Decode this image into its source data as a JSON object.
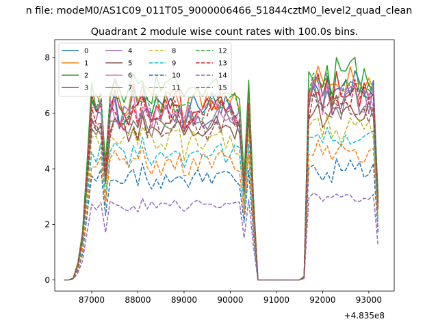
{
  "chart_data": {
    "type": "line",
    "suptitle": "n file: modeM0/AS1C09_011T05_9000006466_51844cztM0_level2_quad_clean",
    "title": "Quadrant 2 module wise count rates with 100.0s bins.",
    "xlabel": "",
    "ylabel": "",
    "x_offset_label": "+4.835e8",
    "xlim": [
      86200,
      93550
    ],
    "ylim": [
      -0.4,
      8.65
    ],
    "xticks": [
      87000,
      88000,
      89000,
      90000,
      91000,
      92000,
      93000
    ],
    "yticks": [
      0,
      2,
      4,
      6,
      8
    ],
    "grid": false,
    "legend_placement": "top-left",
    "legend_columns": 4,
    "profile_x": [
      86400,
      86500,
      86600,
      86700,
      86800,
      86900,
      87000,
      87100,
      87200,
      87300,
      87400,
      87500,
      87600,
      87700,
      87800,
      87900,
      88000,
      88100,
      88200,
      88300,
      88400,
      88500,
      88600,
      88700,
      88800,
      88900,
      89000,
      89100,
      89200,
      89300,
      89400,
      89500,
      89600,
      89700,
      89800,
      89900,
      90000,
      90100,
      90200,
      90300,
      90400,
      90500,
      90600,
      90700,
      90800,
      90900,
      91000,
      91100,
      91200,
      91300,
      91400,
      91500,
      91600,
      91700,
      91800,
      91900,
      92000,
      92100,
      92200,
      92300,
      92400,
      92500,
      92600,
      92700,
      92800,
      92900,
      93000,
      93100,
      93200
    ],
    "series": [
      {
        "name": "0",
        "color": "#1f77b4",
        "dash": "solid",
        "level": 6.35,
        "seed": 1
      },
      {
        "name": "1",
        "color": "#ff7f0e",
        "dash": "solid",
        "level": 6.55,
        "seed": 2
      },
      {
        "name": "2",
        "color": "#2ca02c",
        "dash": "solid",
        "level": 6.85,
        "seed": 3
      },
      {
        "name": "3",
        "color": "#d62728",
        "dash": "solid",
        "level": 6.3,
        "seed": 4
      },
      {
        "name": "4",
        "color": "#9467bd",
        "dash": "solid",
        "level": 6.05,
        "seed": 5
      },
      {
        "name": "5",
        "color": "#8c564b",
        "dash": "solid",
        "level": 5.6,
        "seed": 6
      },
      {
        "name": "6",
        "color": "#e377c2",
        "dash": "solid",
        "level": 6.15,
        "seed": 7
      },
      {
        "name": "7",
        "color": "#7f7f7f",
        "dash": "solid",
        "level": 5.85,
        "seed": 8
      },
      {
        "name": "8",
        "color": "#bcbd22",
        "dash": "dashed",
        "level": 5.05,
        "seed": 9
      },
      {
        "name": "9",
        "color": "#17becf",
        "dash": "dashed",
        "level": 4.65,
        "seed": 10
      },
      {
        "name": "10",
        "color": "#1f77b4",
        "dash": "dashed",
        "level": 3.75,
        "seed": 11
      },
      {
        "name": "11",
        "color": "#ff7f0e",
        "dash": "dashed",
        "level": 4.3,
        "seed": 12
      },
      {
        "name": "12",
        "color": "#2ca02c",
        "dash": "dashed",
        "level": 6.4,
        "seed": 13
      },
      {
        "name": "13",
        "color": "#d62728",
        "dash": "dashed",
        "level": 6.05,
        "seed": 14
      },
      {
        "name": "14",
        "color": "#9467bd",
        "dash": "dashed",
        "level": 2.75,
        "seed": 15
      },
      {
        "name": "15",
        "color": "#8c564b",
        "dash": "dashed",
        "level": 5.65,
        "seed": 16
      }
    ]
  }
}
